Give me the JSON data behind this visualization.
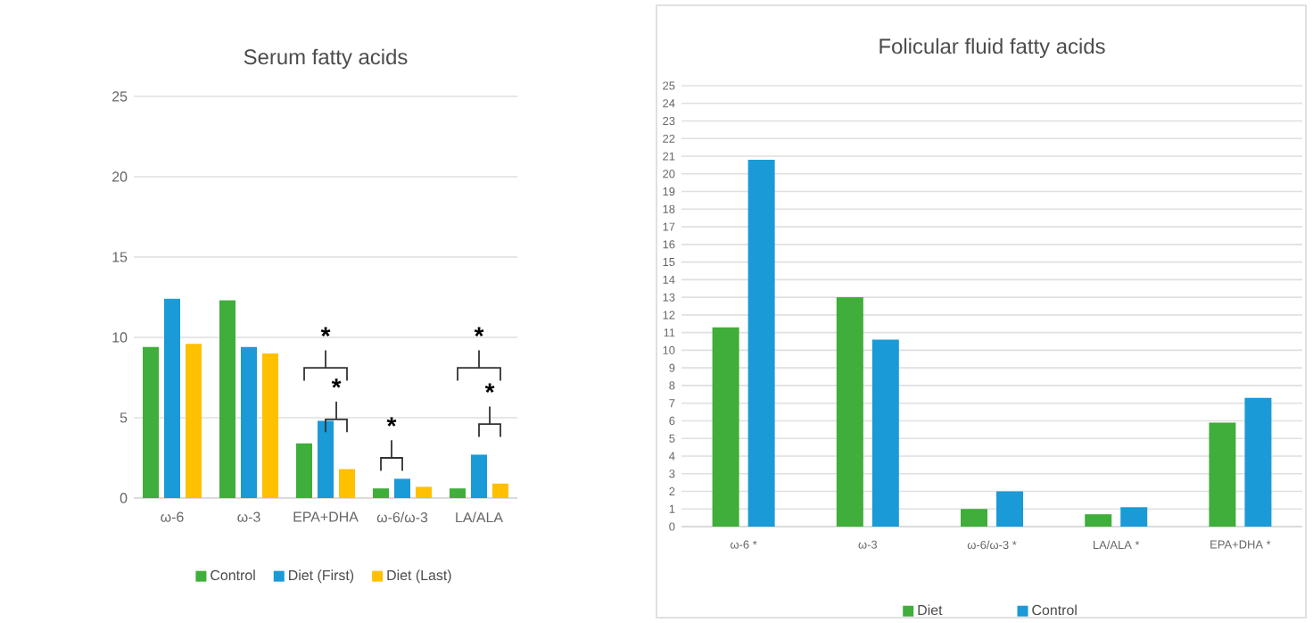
{
  "chart_data": [
    {
      "type": "bar",
      "title": "Serum fatty acids",
      "categories": [
        "ω-6",
        "ω-3",
        "EPA+DHA",
        "ω-6/ω-3",
        "LA/ALA"
      ],
      "series": [
        {
          "name": "Control",
          "color": "#3fae3a",
          "values": [
            9.4,
            12.3,
            3.4,
            0.6,
            0.6
          ]
        },
        {
          "name": "Diet (First)",
          "color": "#1a9ad6",
          "values": [
            12.4,
            9.4,
            4.8,
            1.2,
            2.7
          ]
        },
        {
          "name": "Diet (Last)",
          "color": "#ffc000",
          "values": [
            9.6,
            9.0,
            1.8,
            0.7,
            0.9
          ]
        }
      ],
      "ylim": [
        0,
        25
      ],
      "yticks": [
        0,
        5,
        10,
        15,
        20,
        25
      ],
      "grid": "y",
      "legend": "bottom",
      "annotations": [
        "*",
        "*",
        "*",
        "*",
        "*"
      ]
    },
    {
      "type": "bar",
      "title": "Folicular fluid fatty acids",
      "categories": [
        "ω-6 *",
        "ω-3",
        "ω-6/ω-3 *",
        "LA/ALA *",
        "EPA+DHA *"
      ],
      "series": [
        {
          "name": "Diet",
          "color": "#3fae3a",
          "values": [
            11.3,
            13.0,
            1.0,
            0.7,
            5.9
          ]
        },
        {
          "name": "Control",
          "color": "#1a9ad6",
          "values": [
            20.8,
            10.6,
            2.0,
            1.1,
            7.3
          ]
        }
      ],
      "ylim": [
        0,
        25
      ],
      "yticks": [
        0,
        1,
        2,
        3,
        4,
        5,
        6,
        7,
        8,
        9,
        10,
        11,
        12,
        13,
        14,
        15,
        16,
        17,
        18,
        19,
        20,
        21,
        22,
        23,
        24,
        25
      ],
      "grid": "y",
      "legend": "bottom"
    }
  ]
}
